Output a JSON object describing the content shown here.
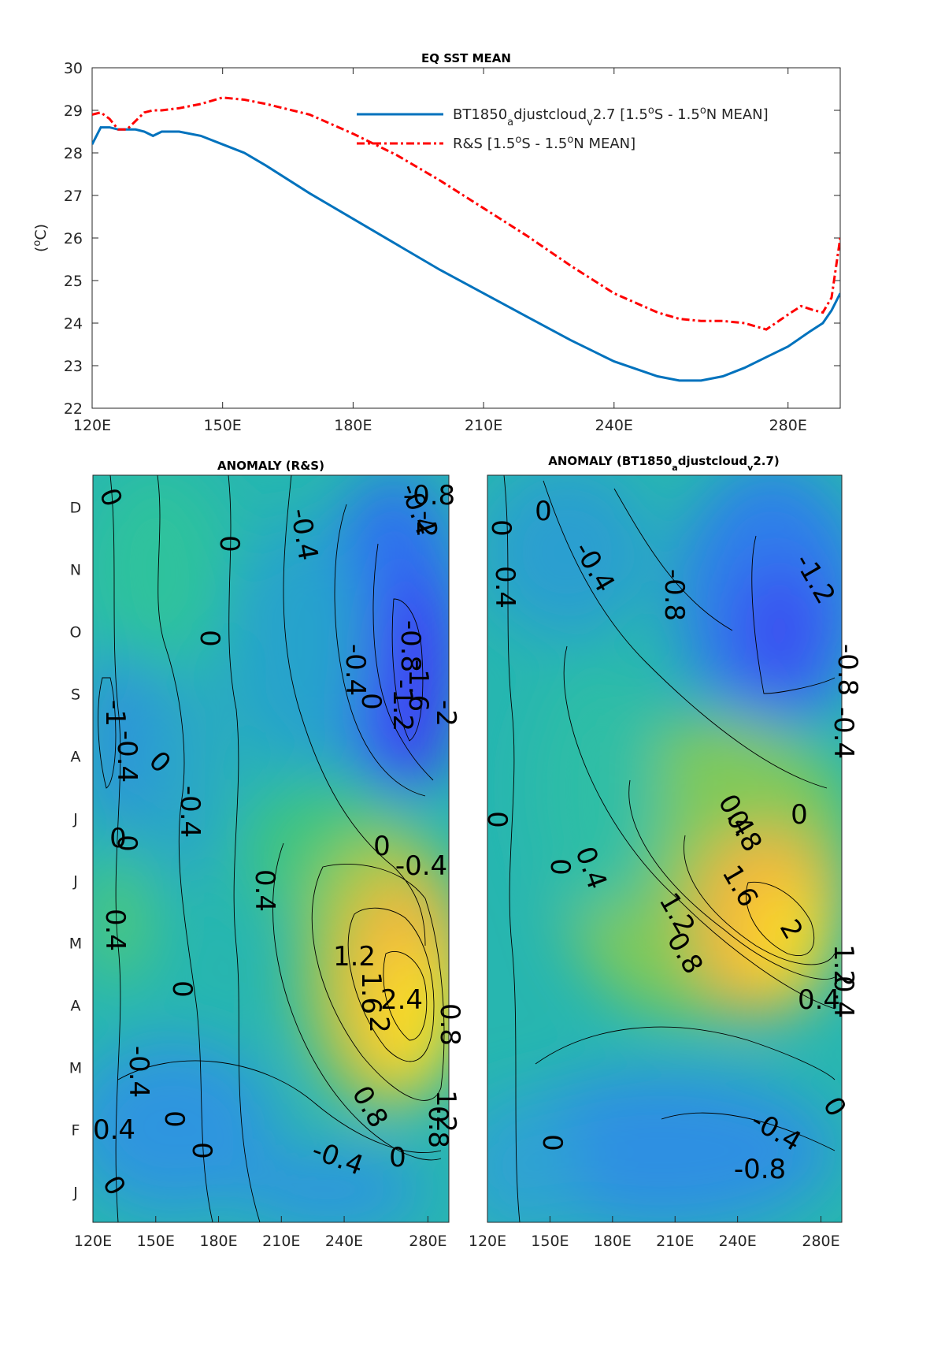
{
  "chart_data": [
    {
      "type": "line",
      "title": "EQ SST MEAN",
      "xlabel": "",
      "ylabel": "(°C)",
      "xlim": [
        120,
        292
      ],
      "ylim": [
        22,
        30
      ],
      "xticks": [
        120,
        150,
        180,
        210,
        240,
        280
      ],
      "xtick_labels": [
        "120E",
        "150E",
        "180E",
        "210E",
        "240E",
        "280E"
      ],
      "yticks": [
        22,
        23,
        24,
        25,
        26,
        27,
        28,
        29,
        30
      ],
      "legend_position": "top-right",
      "series": [
        {
          "name": "BT1850_adjustcloud_v2.7 [1.5°S - 1.5°N MEAN]",
          "legend_parts": [
            "BT1850",
            "a",
            "djustcloud",
            "v",
            "2.7 [1.5",
            "o",
            "S - 1.5",
            "o",
            "N MEAN]"
          ],
          "color": "#0072bd",
          "style": "solid",
          "x": [
            120,
            122,
            124,
            126,
            128,
            130,
            132,
            134,
            136,
            138,
            140,
            145,
            150,
            155,
            160,
            170,
            180,
            190,
            200,
            210,
            220,
            230,
            240,
            250,
            255,
            260,
            265,
            270,
            275,
            280,
            285,
            288,
            290,
            292
          ],
          "y": [
            28.2,
            28.6,
            28.6,
            28.55,
            28.55,
            28.55,
            28.5,
            28.4,
            28.5,
            28.5,
            28.5,
            28.4,
            28.2,
            28.0,
            27.7,
            27.05,
            26.45,
            25.85,
            25.25,
            24.7,
            24.15,
            23.6,
            23.1,
            22.75,
            22.65,
            22.65,
            22.75,
            22.95,
            23.2,
            23.45,
            23.8,
            24.0,
            24.3,
            24.7
          ]
        },
        {
          "name": "R&S [1.5°S - 1.5°N MEAN]",
          "legend_parts": [
            "R&S [1.5",
            "o",
            "S - 1.5",
            "o",
            "N MEAN]"
          ],
          "color": "#ff0000",
          "style": "dash-dot",
          "x": [
            120,
            122,
            124,
            126,
            128,
            130,
            132,
            134,
            136,
            140,
            145,
            150,
            155,
            160,
            170,
            180,
            190,
            200,
            210,
            220,
            230,
            240,
            250,
            255,
            260,
            265,
            270,
            275,
            280,
            283,
            286,
            288,
            290,
            292
          ],
          "y": [
            28.9,
            28.95,
            28.8,
            28.55,
            28.55,
            28.75,
            28.95,
            29.0,
            29.0,
            29.05,
            29.15,
            29.3,
            29.25,
            29.15,
            28.9,
            28.45,
            27.95,
            27.35,
            26.7,
            26.05,
            25.35,
            24.7,
            24.25,
            24.1,
            24.05,
            24.05,
            24.0,
            23.85,
            24.2,
            24.4,
            24.3,
            24.25,
            24.6,
            26.0
          ]
        }
      ]
    },
    {
      "type": "heatmap",
      "title": "ANOMALY (R&S)",
      "x_tick_labels": [
        "120E",
        "150E",
        "180E",
        "210E",
        "240E",
        "280E"
      ],
      "y_tick_labels": [
        "J",
        "F",
        "M",
        "A",
        "M",
        "J",
        "J",
        "A",
        "S",
        "O",
        "N",
        "D"
      ],
      "contour_labels": [
        "0",
        "-0.4",
        "0",
        "-0.4",
        "0",
        "-0.4",
        "0",
        "-0.8",
        "-1.2",
        "-1.6",
        "-2",
        "-2",
        "-0.8",
        "-1",
        "-0.4",
        "-0.4",
        "0",
        "0",
        "0",
        "0",
        "-0.4",
        "0.4",
        "0.4",
        "0",
        "1.6",
        "1.2",
        "2.4",
        "2",
        "0.8",
        "0.8",
        "-0.4",
        "0",
        "0",
        "-0.4",
        "0",
        "0.8",
        "1.2",
        "0",
        "0.4"
      ],
      "peak_warm": 2.4,
      "peak_cold": -2
    },
    {
      "type": "heatmap",
      "title": "ANOMALY (BT1850_adjustcloud_v2.7)",
      "title_parts": [
        "ANOMALY (BT1850",
        "a",
        "djustcloud",
        "v",
        "2.7)"
      ],
      "x_tick_labels": [
        "120E",
        "150E",
        "180E",
        "210E",
        "240E",
        "280E"
      ],
      "y_tick_labels": [],
      "contour_labels": [
        "0",
        "0",
        "0.4",
        "-0.4",
        "-0.8",
        "-1.2",
        "-0.8",
        "-0.4",
        "0",
        "0",
        "0.4",
        "0.4",
        "0.8",
        "0",
        "1.6",
        "1.2",
        "0.8",
        "2",
        "1.2",
        "0.4",
        "0.4",
        "0",
        "0",
        "-0.4",
        "-0.8"
      ],
      "peak_warm": 2,
      "peak_cold": -1.2
    }
  ]
}
